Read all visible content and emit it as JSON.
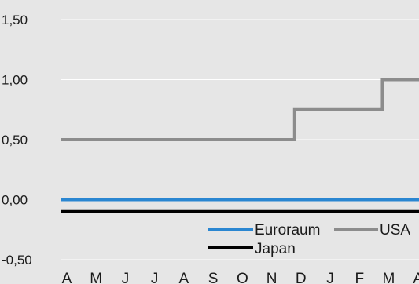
{
  "colors": {
    "background": "#e6e6e6",
    "grid": "#ffffff",
    "text": "#1a1a1a"
  },
  "chart_data": {
    "type": "line",
    "title": "",
    "xlabel": "",
    "ylabel": "",
    "categories": [
      "A",
      "M",
      "J",
      "J",
      "A",
      "S",
      "O",
      "N",
      "D",
      "J",
      "F",
      "M",
      "A"
    ],
    "ylim": [
      -0.5,
      1.5
    ],
    "yticks": [
      -0.5,
      0.0,
      0.5,
      1.0,
      1.5
    ],
    "ytick_labels": [
      "-0,50",
      "0,00",
      "0,50",
      "1,00",
      "1,50"
    ],
    "grid": true,
    "legend_position": "bottom-right",
    "series": [
      {
        "name": "Euroraum",
        "color": "#2a86d1",
        "step": true,
        "values": [
          0.0,
          0.0,
          0.0,
          0.0,
          0.0,
          0.0,
          0.0,
          0.0,
          0.0,
          0.0,
          0.0,
          0.0,
          0.0
        ]
      },
      {
        "name": "USA",
        "color": "#8c8c8c",
        "step": true,
        "values": [
          0.5,
          0.5,
          0.5,
          0.5,
          0.5,
          0.5,
          0.5,
          0.5,
          0.75,
          0.75,
          0.75,
          1.0,
          1.0
        ]
      },
      {
        "name": "Japan",
        "color": "#000000",
        "step": true,
        "values": [
          -0.1,
          -0.1,
          -0.1,
          -0.1,
          -0.1,
          -0.1,
          -0.1,
          -0.1,
          -0.1,
          -0.1,
          -0.1,
          -0.1,
          -0.1
        ]
      }
    ]
  }
}
